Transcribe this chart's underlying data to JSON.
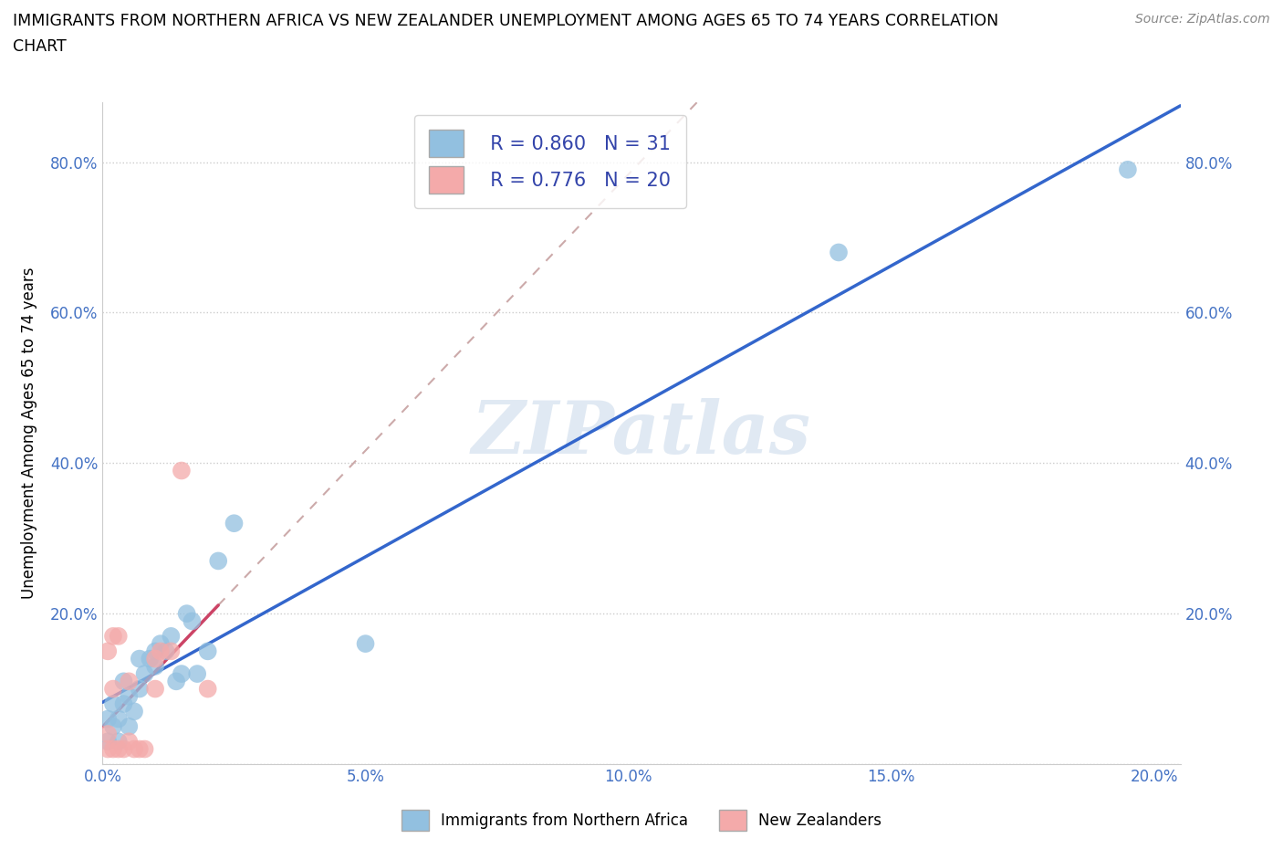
{
  "title_line1": "IMMIGRANTS FROM NORTHERN AFRICA VS NEW ZEALANDER UNEMPLOYMENT AMONG AGES 65 TO 74 YEARS CORRELATION",
  "title_line2": "CHART",
  "source": "Source: ZipAtlas.com",
  "ylabel": "Unemployment Among Ages 65 to 74 years",
  "legend_label1": "Immigrants from Northern Africa",
  "legend_label2": "New Zealanders",
  "R1": 0.86,
  "N1": 31,
  "R2": 0.776,
  "N2": 20,
  "color1": "#92c0e0",
  "color2": "#f4aaaa",
  "trendline1_color": "#3366cc",
  "trendline2_color": "#cc4466",
  "watermark": "ZIPatlas",
  "blue_scatter_x": [
    0.001,
    0.001,
    0.002,
    0.002,
    0.003,
    0.003,
    0.004,
    0.004,
    0.005,
    0.005,
    0.006,
    0.007,
    0.007,
    0.008,
    0.009,
    0.01,
    0.01,
    0.011,
    0.012,
    0.013,
    0.014,
    0.015,
    0.016,
    0.017,
    0.018,
    0.02,
    0.022,
    0.025,
    0.05,
    0.14,
    0.195
  ],
  "blue_scatter_y": [
    0.03,
    0.06,
    0.05,
    0.08,
    0.03,
    0.06,
    0.08,
    0.11,
    0.05,
    0.09,
    0.07,
    0.1,
    0.14,
    0.12,
    0.14,
    0.13,
    0.15,
    0.16,
    0.15,
    0.17,
    0.11,
    0.12,
    0.2,
    0.19,
    0.12,
    0.15,
    0.27,
    0.32,
    0.16,
    0.68,
    0.79
  ],
  "pink_scatter_x": [
    0.001,
    0.001,
    0.001,
    0.002,
    0.002,
    0.002,
    0.003,
    0.003,
    0.004,
    0.005,
    0.005,
    0.006,
    0.007,
    0.008,
    0.01,
    0.01,
    0.011,
    0.013,
    0.015,
    0.02
  ],
  "pink_scatter_y": [
    0.02,
    0.04,
    0.15,
    0.02,
    0.1,
    0.17,
    0.02,
    0.17,
    0.02,
    0.03,
    0.11,
    0.02,
    0.02,
    0.02,
    0.1,
    0.14,
    0.15,
    0.15,
    0.39,
    0.1
  ],
  "xlim": [
    0.0,
    0.205
  ],
  "ylim": [
    0.0,
    0.88
  ],
  "xticks": [
    0.0,
    0.05,
    0.1,
    0.15,
    0.2
  ],
  "yticks": [
    0.0,
    0.2,
    0.4,
    0.6,
    0.8
  ],
  "pink_trend_x_end": 0.022
}
